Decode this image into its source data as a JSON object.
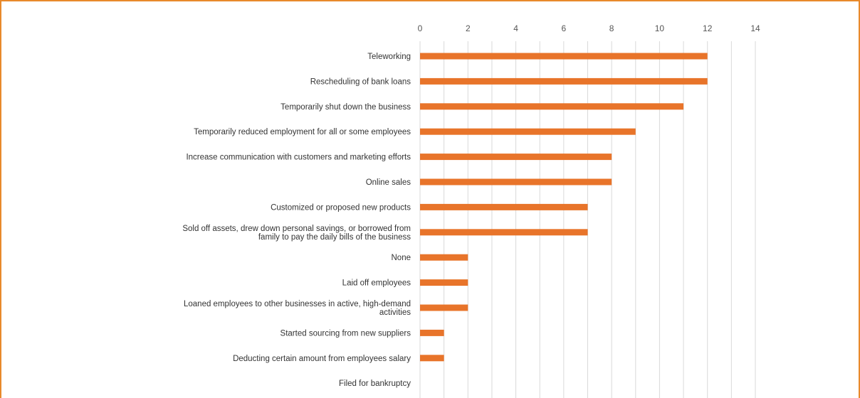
{
  "colors": {
    "bar": "#e8742a",
    "frame": "#e8892b",
    "grid": "#d9d9d9"
  },
  "chart_data": {
    "type": "bar",
    "orientation": "horizontal",
    "title": "",
    "xlabel": "",
    "ylabel": "",
    "xlim": [
      0,
      14
    ],
    "x_ticks": [
      0,
      2,
      4,
      6,
      8,
      10,
      12,
      14
    ],
    "x_axis_position": "top",
    "grid": true,
    "legend": "none",
    "categories": [
      [
        "Teleworking"
      ],
      [
        "Rescheduling of bank loans"
      ],
      [
        "Temporarily shut down the business"
      ],
      [
        "Temporarily reduced employment for all or some employees"
      ],
      [
        "Increase communication with customers and marketing efforts"
      ],
      [
        "Online sales"
      ],
      [
        "Customized or proposed new products"
      ],
      [
        "Sold off assets, drew down personal savings, or borrowed from",
        "family to pay the daily bills of the business"
      ],
      [
        "None"
      ],
      [
        "Laid off employees"
      ],
      [
        "Loaned employees to other businesses in active, high-demand",
        "activities"
      ],
      [
        "Started sourcing from new suppliers"
      ],
      [
        "Deducting certain amount from employees salary"
      ],
      [
        "Filed for bankruptcy"
      ]
    ],
    "values": [
      12,
      12,
      11,
      9,
      8,
      8,
      7,
      7,
      2,
      2,
      2,
      1,
      1,
      0
    ]
  }
}
